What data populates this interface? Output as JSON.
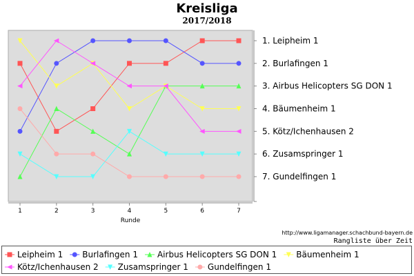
{
  "title": "Kreisliga",
  "subtitle": "2017/2018",
  "url": "http://www.ligamanager.schachbund-bayern.de",
  "caption": "Rangliste über Zeit",
  "chart_data": {
    "type": "line",
    "title": "Kreisliga",
    "subtitle": "2017/2018",
    "xlabel": "Runde",
    "ylabel": "",
    "x": [
      1,
      2,
      3,
      4,
      5,
      6,
      7
    ],
    "ylim": [
      1,
      7
    ],
    "y_inverted": true,
    "grid": false,
    "legend_position": "bottom",
    "rank_labels": [
      "1.  Leipheim 1",
      "2.  Burlafingen 1",
      "3.  Airbus Helicopters SG DON 1",
      "4.  Bäumenheim 1",
      "5.  Kötz/Ichenhausen 2",
      "6.  Zusamspringer 1",
      "7.  Gundelfingen 1"
    ],
    "series": [
      {
        "name": "Leipheim 1",
        "color": "#ff5555",
        "marker": "square",
        "values": [
          2,
          5,
          4,
          2,
          2,
          1,
          1
        ]
      },
      {
        "name": "Burlafingen 1",
        "color": "#5555ff",
        "marker": "circle",
        "values": [
          5,
          2,
          1,
          1,
          1,
          2,
          2
        ]
      },
      {
        "name": "Airbus Helicopters SG DON 1",
        "color": "#55ff55",
        "marker": "triangle-up",
        "values": [
          7,
          4,
          5,
          6,
          3,
          3,
          3
        ]
      },
      {
        "name": "Bäumenheim 1",
        "color": "#ffff55",
        "marker": "triangle-down",
        "values": [
          1,
          3,
          2,
          4,
          3,
          4,
          4
        ]
      },
      {
        "name": "Kötz/Ichenhausen 2",
        "color": "#ff55ff",
        "marker": "triangle-left",
        "values": [
          3,
          1,
          2,
          3,
          3,
          5,
          5
        ]
      },
      {
        "name": "Zusamspringer 1",
        "color": "#55ffff",
        "marker": "triangle-down",
        "values": [
          6,
          7,
          7,
          5,
          6,
          6,
          6
        ]
      },
      {
        "name": "Gundelfingen 1",
        "color": "#ffaaaa",
        "marker": "circle",
        "values": [
          4,
          6,
          6,
          7,
          7,
          7,
          7
        ]
      }
    ]
  }
}
